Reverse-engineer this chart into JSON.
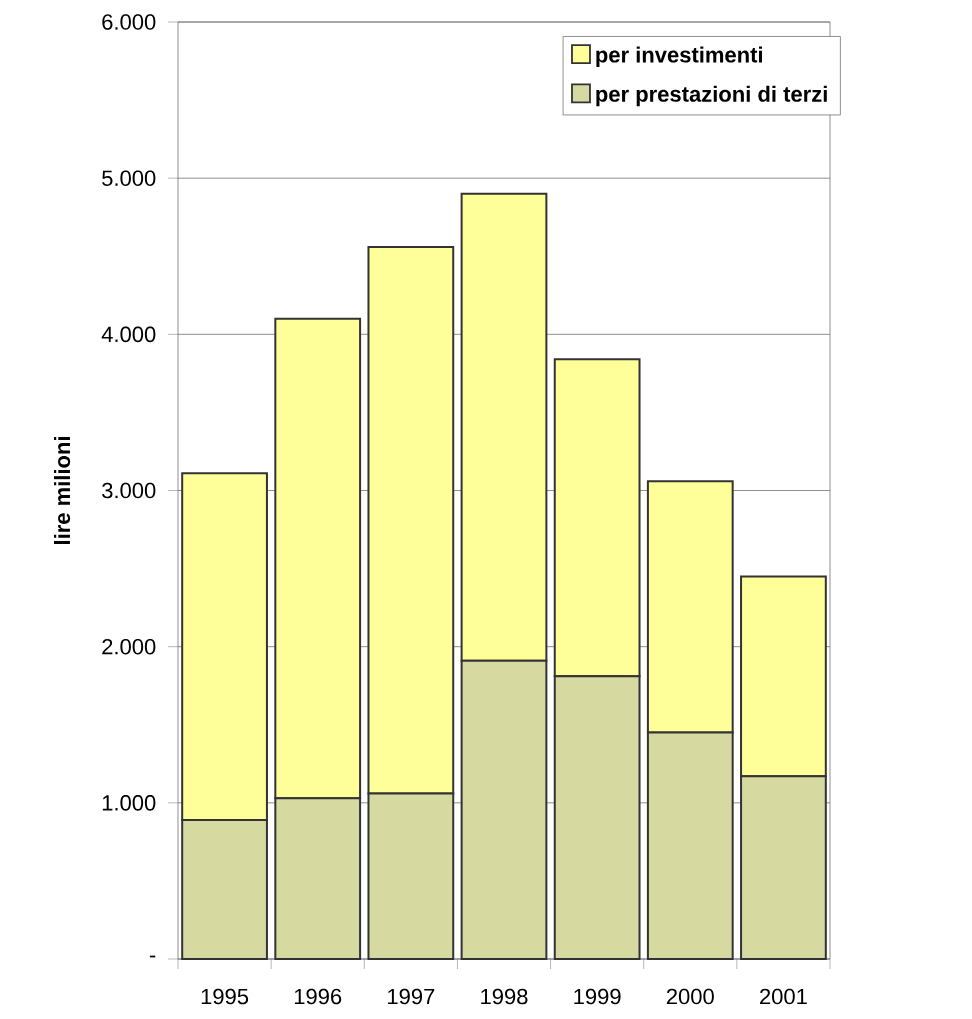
{
  "chart_data": {
    "type": "bar",
    "stacked": true,
    "ylabel": "lire milioni",
    "categories": [
      "1995",
      "1996",
      "1997",
      "1998",
      "1999",
      "2000",
      "2001"
    ],
    "series": [
      {
        "name": "per prestazioni di terzi",
        "color": "#d6d9a0",
        "values": [
          890,
          1030,
          1060,
          1910,
          1810,
          1450,
          1170
        ]
      },
      {
        "name": "per investimenti",
        "color": "#ffff99",
        "values": [
          2220,
          3070,
          3500,
          2990,
          2030,
          1610,
          1280
        ]
      }
    ],
    "ylim": [
      0,
      6000
    ],
    "yticks": [
      {
        "value": 0,
        "label": "-"
      },
      {
        "value": 1000,
        "label": "1.000"
      },
      {
        "value": 2000,
        "label": "2.000"
      },
      {
        "value": 3000,
        "label": "3.000"
      },
      {
        "value": 4000,
        "label": "4.000"
      },
      {
        "value": 5000,
        "label": "5.000"
      },
      {
        "value": 6000,
        "label": "6.000"
      }
    ],
    "grid": "y",
    "legend": "top right"
  }
}
